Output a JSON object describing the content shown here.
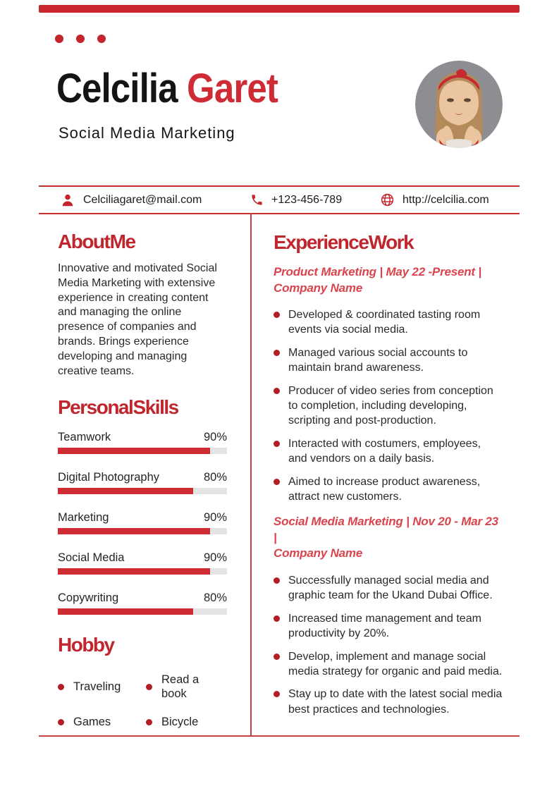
{
  "colors": {
    "accent_red": "#c0262e",
    "name_red": "#cf2b34",
    "italic_red": "#d9444d",
    "line_red": "#c4403d",
    "bar_fill": "#ce2b33",
    "bar_track": "#e4e4e4"
  },
  "header": {
    "name_first": "Celcilia",
    "name_last": "Garet",
    "subtitle": "Social Media Marketing",
    "photo_alt": "woman-portrait-red-headband"
  },
  "contact": {
    "email": {
      "icon": "person-icon",
      "value": "Celciliagaret@mail.com"
    },
    "phone": {
      "icon": "phone-icon",
      "value": "+123-456-789"
    },
    "website": {
      "icon": "globe-icon",
      "value": "http://celcilia.com"
    }
  },
  "about": {
    "title": "About Me",
    "body": "Innovative and motivated Social\nMedia Marketing with extensive\nexperience in creating content\nand managing the online\npresence of companies and\nbrands. Brings experience\ndeveloping and managing\ncreative teams."
  },
  "skills": {
    "title": "Personal Skills",
    "items": [
      {
        "label": "Teamwork",
        "pct_label": "90%",
        "value": 90
      },
      {
        "label": "Digital Photography",
        "pct_label": "80%",
        "value": 80
      },
      {
        "label": "Marketing",
        "pct_label": "90%",
        "value": 90
      },
      {
        "label": "Social Media",
        "pct_label": "90%",
        "value": 90
      },
      {
        "label": "Copywriting",
        "pct_label": "80%",
        "value": 80
      }
    ]
  },
  "hobby": {
    "title": "Hobby",
    "items": [
      "Traveling",
      "Read a book",
      "Games",
      "Bicycle"
    ]
  },
  "experience": {
    "title": "Experience Work",
    "jobs": [
      {
        "heading": "Product Marketing | May 22 -Present |\nCompany Name",
        "bullets": [
          "Developed & coordinated tasting room events via social media.",
          "Managed various social accounts to maintain brand awareness.",
          "Producer of video series from conception to completion, including developing, scripting and post-production.",
          "Interacted with costumers, employees, and vendors on a daily basis.",
          "Aimed to increase product awareness, attract new customers."
        ]
      },
      {
        "heading": "Social Media Marketing | Nov 20 - Mar 23 |\nCompany Name",
        "bullets": [
          "Successfully managed social media and graphic team for the Ukand Dubai Office.",
          "Increased time management and team productivity by 20%.",
          "Develop, implement and manage social media strategy for organic and paid media.",
          "Stay up to date with the latest social media best practices and technologies."
        ]
      }
    ]
  }
}
